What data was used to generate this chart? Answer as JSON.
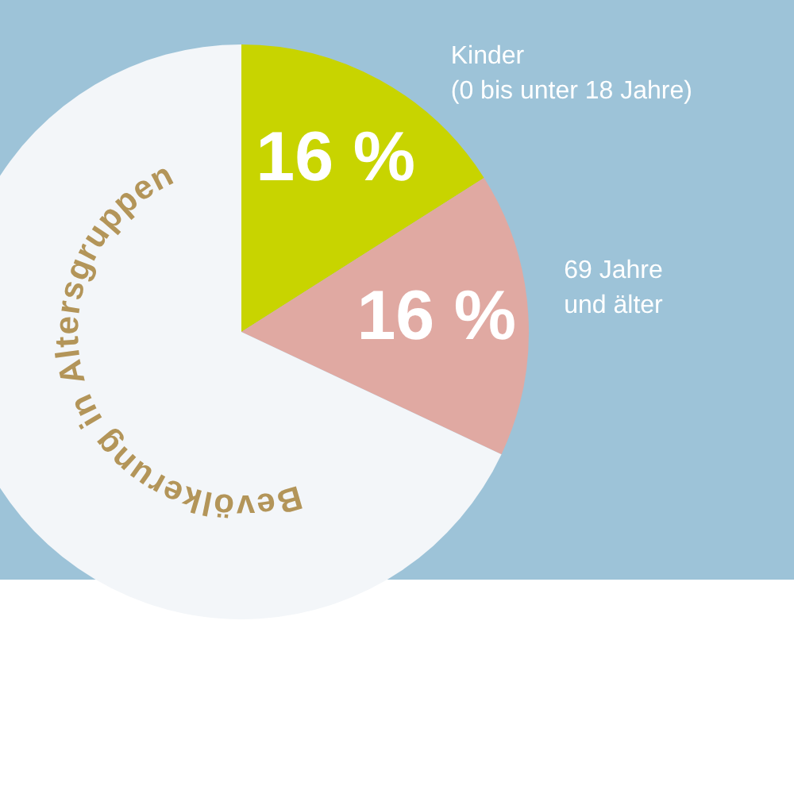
{
  "chart_data": {
    "type": "pie",
    "title": "Bevölkerung in Altersgruppen",
    "categories": [
      "Kinder\n(0 bis unter 18 Jahre)",
      "69 Jahre\nund älter",
      null
    ],
    "values": [
      16,
      16,
      68
    ],
    "colors": [
      "#c8d400",
      "#e0a9a2",
      "#f3f6f9"
    ],
    "value_labels": [
      "16 %",
      "16 %",
      null
    ],
    "legend": false
  }
}
